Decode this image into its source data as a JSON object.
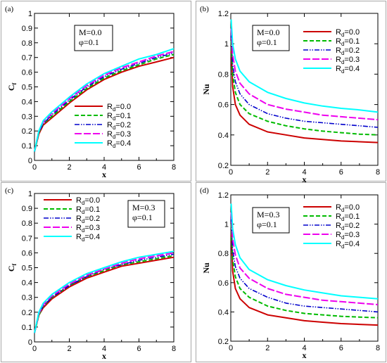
{
  "colors": [
    "#cc0000",
    "#00bb00",
    "#0000cc",
    "#ee00ee",
    "#00ffff"
  ],
  "chart_data": [
    {
      "type": "line",
      "panel_label": "(a)",
      "xlabel": "x",
      "ylabel_main": "C",
      "ylabel_sub": "f",
      "xlim": [
        0,
        8
      ],
      "ylim": [
        0,
        1
      ],
      "xticks": [
        0,
        2,
        4,
        6,
        8
      ],
      "yticks": [
        0,
        0.1,
        0.2,
        0.3,
        0.4,
        0.5,
        0.6,
        0.7,
        0.8,
        0.9,
        1
      ],
      "annotation": [
        "M=0.0",
        "φ=0.1"
      ],
      "legend_position": "bottom-right",
      "x": [
        0,
        0.25,
        0.5,
        1,
        2,
        3,
        4,
        5,
        6,
        7,
        8
      ],
      "series": [
        {
          "name": "Rd=0.0",
          "values": [
            0.06,
            0.18,
            0.24,
            0.29,
            0.39,
            0.48,
            0.55,
            0.6,
            0.64,
            0.67,
            0.7
          ]
        },
        {
          "name": "Rd=0.1",
          "values": [
            0.06,
            0.19,
            0.25,
            0.3,
            0.4,
            0.49,
            0.56,
            0.61,
            0.65,
            0.69,
            0.72
          ]
        },
        {
          "name": "Rd=0.2",
          "values": [
            0.06,
            0.19,
            0.25,
            0.31,
            0.41,
            0.5,
            0.57,
            0.62,
            0.66,
            0.7,
            0.73
          ]
        },
        {
          "name": "Rd=0.3",
          "values": [
            0.06,
            0.2,
            0.26,
            0.32,
            0.42,
            0.51,
            0.58,
            0.63,
            0.67,
            0.71,
            0.74
          ]
        },
        {
          "name": "Rd=0.4",
          "values": [
            0.06,
            0.2,
            0.27,
            0.33,
            0.43,
            0.52,
            0.59,
            0.64,
            0.69,
            0.72,
            0.76
          ]
        }
      ]
    },
    {
      "type": "line",
      "panel_label": "(b)",
      "xlabel": "x",
      "ylabel_main": "Nu",
      "ylabel_sub": "",
      "xlim": [
        0,
        8
      ],
      "ylim": [
        0.2,
        1.2
      ],
      "xticks": [
        0,
        2,
        4,
        6,
        8
      ],
      "yticks": [
        0.2,
        0.4,
        0.6,
        0.8,
        1,
        1.2
      ],
      "annotation": [
        "M=0.0",
        "φ=0.1"
      ],
      "legend_position": "top-right",
      "x": [
        0.02,
        0.1,
        0.25,
        0.5,
        1,
        2,
        3,
        4,
        5,
        6,
        7,
        8
      ],
      "series": [
        {
          "name": "Rd=0.0",
          "values": [
            0.98,
            0.72,
            0.6,
            0.53,
            0.47,
            0.42,
            0.4,
            0.38,
            0.37,
            0.36,
            0.355,
            0.35
          ]
        },
        {
          "name": "Rd=0.1",
          "values": [
            1.02,
            0.8,
            0.68,
            0.6,
            0.54,
            0.49,
            0.46,
            0.44,
            0.425,
            0.415,
            0.405,
            0.4
          ]
        },
        {
          "name": "Rd=0.2",
          "values": [
            1.06,
            0.86,
            0.75,
            0.67,
            0.6,
            0.54,
            0.51,
            0.49,
            0.48,
            0.47,
            0.46,
            0.45
          ]
        },
        {
          "name": "Rd=0.3",
          "values": [
            1.1,
            0.93,
            0.82,
            0.74,
            0.67,
            0.6,
            0.57,
            0.55,
            0.53,
            0.52,
            0.51,
            0.5
          ]
        },
        {
          "name": "Rd=0.4",
          "values": [
            1.16,
            1.0,
            0.9,
            0.82,
            0.75,
            0.68,
            0.64,
            0.61,
            0.59,
            0.575,
            0.565,
            0.55
          ]
        }
      ]
    },
    {
      "type": "line",
      "panel_label": "(c)",
      "xlabel": "x",
      "ylabel_main": "C",
      "ylabel_sub": "f",
      "xlim": [
        0,
        8
      ],
      "ylim": [
        0,
        1
      ],
      "xticks": [
        0,
        2,
        4,
        6,
        8
      ],
      "yticks": [
        0,
        0.1,
        0.2,
        0.3,
        0.4,
        0.5,
        0.6,
        0.7,
        0.8,
        0.9,
        1
      ],
      "annotation": [
        "M=0.3",
        "φ=0.1"
      ],
      "legend_position": "top-left",
      "x": [
        0,
        0.25,
        0.5,
        1,
        2,
        3,
        4,
        5,
        6,
        7,
        8
      ],
      "series": [
        {
          "name": "Rd=0.0",
          "values": [
            0.06,
            0.18,
            0.23,
            0.29,
            0.37,
            0.43,
            0.47,
            0.51,
            0.53,
            0.55,
            0.57
          ]
        },
        {
          "name": "Rd=0.1",
          "values": [
            0.06,
            0.18,
            0.24,
            0.3,
            0.38,
            0.44,
            0.48,
            0.52,
            0.54,
            0.56,
            0.58
          ]
        },
        {
          "name": "Rd=0.2",
          "values": [
            0.06,
            0.19,
            0.24,
            0.3,
            0.38,
            0.44,
            0.49,
            0.52,
            0.55,
            0.57,
            0.59
          ]
        },
        {
          "name": "Rd=0.3",
          "values": [
            0.06,
            0.19,
            0.25,
            0.31,
            0.39,
            0.45,
            0.49,
            0.53,
            0.56,
            0.58,
            0.6
          ]
        },
        {
          "name": "Rd=0.4",
          "values": [
            0.06,
            0.2,
            0.26,
            0.32,
            0.4,
            0.46,
            0.5,
            0.54,
            0.57,
            0.59,
            0.61
          ]
        }
      ]
    },
    {
      "type": "line",
      "panel_label": "(d)",
      "xlabel": "x",
      "ylabel_main": "Nu",
      "ylabel_sub": "",
      "xlim": [
        0,
        8
      ],
      "ylim": [
        0.2,
        1.2
      ],
      "xticks": [
        0,
        2,
        4,
        6,
        8
      ],
      "yticks": [
        0.2,
        0.4,
        0.6,
        0.8,
        1,
        1.2
      ],
      "annotation": [
        "M=0.3",
        "φ=0.1"
      ],
      "legend_position": "top-right",
      "x": [
        0.02,
        0.1,
        0.25,
        0.5,
        1,
        2,
        3,
        4,
        5,
        6,
        7,
        8
      ],
      "series": [
        {
          "name": "Rd=0.0",
          "values": [
            0.96,
            0.68,
            0.56,
            0.49,
            0.43,
            0.38,
            0.36,
            0.34,
            0.33,
            0.32,
            0.315,
            0.31
          ]
        },
        {
          "name": "Rd=0.1",
          "values": [
            1.0,
            0.76,
            0.64,
            0.56,
            0.5,
            0.44,
            0.41,
            0.39,
            0.38,
            0.37,
            0.365,
            0.36
          ]
        },
        {
          "name": "Rd=0.2",
          "values": [
            1.04,
            0.82,
            0.71,
            0.63,
            0.56,
            0.5,
            0.46,
            0.44,
            0.43,
            0.42,
            0.41,
            0.4
          ]
        },
        {
          "name": "Rd=0.3",
          "values": [
            1.08,
            0.9,
            0.79,
            0.7,
            0.63,
            0.56,
            0.52,
            0.5,
            0.48,
            0.47,
            0.46,
            0.45
          ]
        },
        {
          "name": "Rd=0.4",
          "values": [
            1.14,
            0.97,
            0.86,
            0.77,
            0.69,
            0.62,
            0.58,
            0.55,
            0.53,
            0.51,
            0.5,
            0.49
          ]
        }
      ]
    }
  ]
}
